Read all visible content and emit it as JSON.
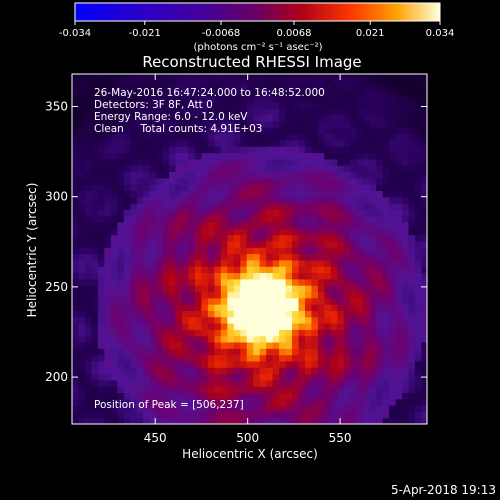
{
  "chart_data": {
    "type": "heatmap",
    "title": "Reconstructed RHESSI Image",
    "xlabel": "Heliocentric X (arcsec)",
    "ylabel": "Heliocentric Y (arcsec)",
    "xlim": [
      405,
      597
    ],
    "ylim": [
      174,
      368
    ],
    "x_ticks": [
      450,
      500,
      550
    ],
    "y_ticks": [
      200,
      250,
      300,
      350
    ],
    "peak": {
      "x": 506,
      "y": 237
    },
    "colorbar": {
      "min": -0.034,
      "max": 0.034,
      "ticks": [
        "-0.034",
        "-0.021",
        "-0.0068",
        "0.0068",
        "0.021",
        "0.034"
      ],
      "unit": "(photons cm⁻² s⁻¹ asec⁻²)"
    },
    "annotations": [
      "26-May-2016 16:47:24.000 to 16:48:52.000",
      "Detectors: 3F 8F, Att 0",
      "Energy Range: 6.0 - 12.0 keV",
      "Clean     Total counts: 4.91E+03"
    ],
    "peak_text": "Position of Peak = [506,237]"
  },
  "footer": {
    "timestamp": "5-Apr-2018 19:13"
  }
}
